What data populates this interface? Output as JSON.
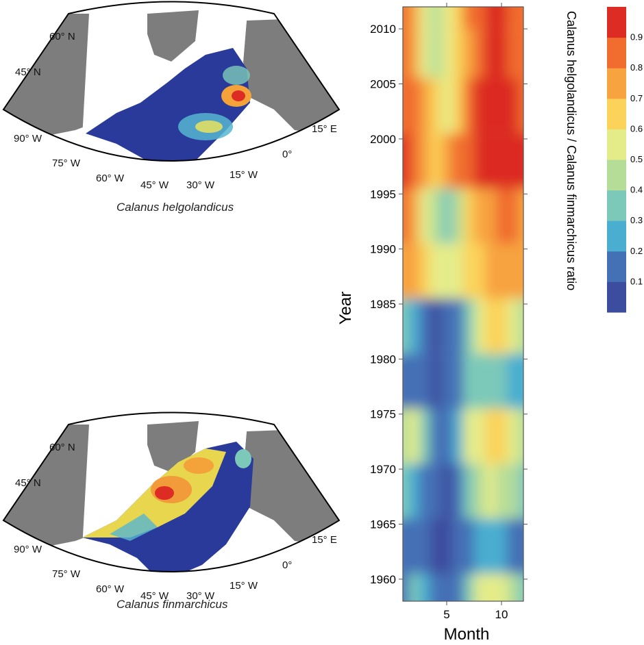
{
  "maps": [
    {
      "caption": "Calanus helgolandicus",
      "lat_labels": [
        "60° N",
        "45° N"
      ],
      "lon_labels": [
        "90° W",
        "75° W",
        "60° W",
        "45° W",
        "30° W",
        "15° W",
        "0°",
        "15° E"
      ]
    },
    {
      "caption": "Calanus finmarchicus",
      "lat_labels": [
        "60° N",
        "45° N"
      ],
      "lon_labels": [
        "90° W",
        "75° W",
        "60° W",
        "45° W",
        "30° W",
        "15° W",
        "0°",
        "15° E"
      ]
    }
  ],
  "chart_data": {
    "type": "heatmap",
    "xlabel": "Month",
    "ylabel": "Year",
    "x_ticks": [
      5,
      10
    ],
    "y_ticks": [
      1960,
      1965,
      1970,
      1975,
      1980,
      1985,
      1990,
      1995,
      2000,
      2005,
      2010
    ],
    "xlim": [
      1,
      12
    ],
    "ylim": [
      1958,
      2012
    ],
    "colorbar": {
      "label": "Calanus helgolandicus / Calanus finmarchicus ratio",
      "ticks": [
        0.1,
        0.2,
        0.3,
        0.4,
        0.5,
        0.6,
        0.7,
        0.8,
        0.9
      ],
      "colors": [
        "#3c4c9e",
        "#4470b6",
        "#4aaed0",
        "#7dc9b9",
        "#b6dd98",
        "#e4ec8a",
        "#fbd35a",
        "#f7a340",
        "#f06c2f",
        "#dc2c24"
      ]
    },
    "years_sampled": [
      1958,
      1963,
      1968,
      1973,
      1978,
      1983,
      1988,
      1993,
      1998,
      2003,
      2008,
      2012
    ],
    "months_sampled": [
      1,
      2,
      3,
      4,
      5,
      6,
      7,
      8,
      9,
      10,
      11,
      12
    ],
    "ratio_grid": [
      [
        0.15,
        0.3,
        0.25,
        0.1,
        0.1,
        0.15,
        0.3,
        0.5,
        0.55,
        0.5,
        0.4,
        0.3
      ],
      [
        0.1,
        0.12,
        0.1,
        0.08,
        0.08,
        0.1,
        0.15,
        0.2,
        0.22,
        0.2,
        0.18,
        0.15
      ],
      [
        0.3,
        0.25,
        0.15,
        0.1,
        0.08,
        0.1,
        0.35,
        0.45,
        0.5,
        0.45,
        0.4,
        0.35
      ],
      [
        0.45,
        0.5,
        0.35,
        0.12,
        0.1,
        0.2,
        0.55,
        0.55,
        0.6,
        0.6,
        0.55,
        0.4
      ],
      [
        0.15,
        0.12,
        0.1,
        0.08,
        0.1,
        0.12,
        0.3,
        0.35,
        0.3,
        0.3,
        0.25,
        0.2
      ],
      [
        0.3,
        0.2,
        0.1,
        0.08,
        0.1,
        0.15,
        0.35,
        0.55,
        0.6,
        0.6,
        0.5,
        0.4
      ],
      [
        0.75,
        0.7,
        0.6,
        0.55,
        0.5,
        0.55,
        0.6,
        0.65,
        0.7,
        0.7,
        0.75,
        0.7
      ],
      [
        0.8,
        0.7,
        0.55,
        0.4,
        0.35,
        0.45,
        0.6,
        0.7,
        0.75,
        0.8,
        0.8,
        0.75
      ],
      [
        0.9,
        0.85,
        0.75,
        0.65,
        0.7,
        0.8,
        0.85,
        0.9,
        0.95,
        0.95,
        0.95,
        0.9
      ],
      [
        0.85,
        0.8,
        0.7,
        0.6,
        0.55,
        0.6,
        0.8,
        0.9,
        0.95,
        0.95,
        0.9,
        0.85
      ],
      [
        0.8,
        0.7,
        0.5,
        0.45,
        0.5,
        0.6,
        0.75,
        0.85,
        0.9,
        0.9,
        0.85,
        0.8
      ],
      [
        0.85,
        0.75,
        0.55,
        0.45,
        0.5,
        0.65,
        0.8,
        0.85,
        0.9,
        0.9,
        0.85,
        0.8
      ]
    ]
  }
}
